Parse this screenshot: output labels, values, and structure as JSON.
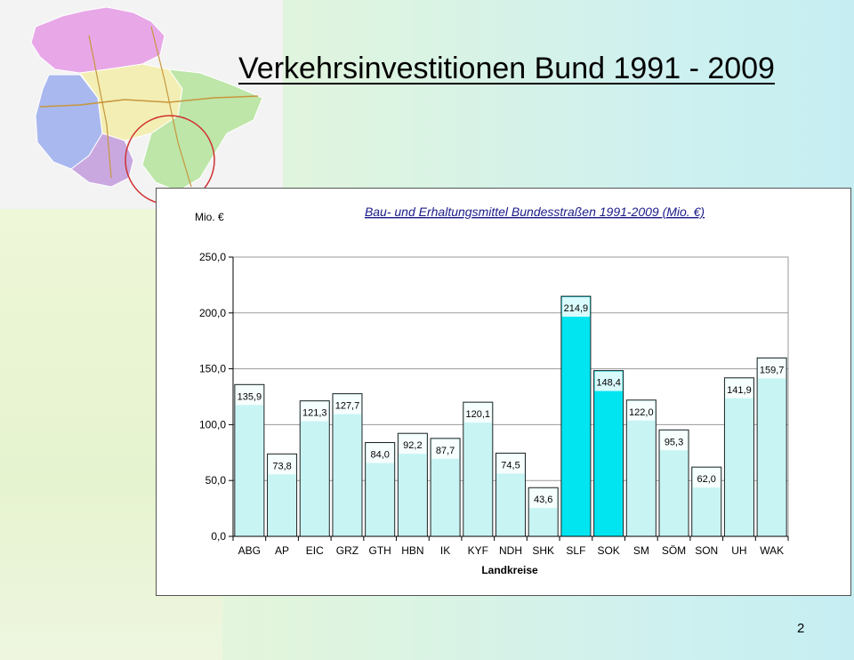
{
  "slide": {
    "title": "Verkehrsinvestitionen Bund 1991 - 2009",
    "page_number": "2"
  },
  "colors": {
    "bar_fill": "#c8f4f4",
    "bar_highlight": "#00e5f0",
    "bar_stroke": "#222222",
    "plot_bg": "#ffffff",
    "grid": "#9a9a9a"
  },
  "chart_data": {
    "type": "bar",
    "title": "Bau- und Erhaltungsmittel Bundesstraßen 1991-2009 (Mio. €)",
    "ylabel": "Mio. €",
    "xlabel": "Landkreise",
    "ylim": [
      0,
      250
    ],
    "yticks": [
      "0,0",
      "50,0",
      "100,0",
      "150,0",
      "200,0",
      "250,0"
    ],
    "grid": true,
    "categories": [
      "ABG",
      "AP",
      "EIC",
      "GRZ",
      "GTH",
      "HBN",
      "IK",
      "KYF",
      "NDH",
      "SHK",
      "SLF",
      "SOK",
      "SM",
      "SÖM",
      "SON",
      "UH",
      "WAK"
    ],
    "values": [
      135.9,
      73.8,
      121.3,
      127.7,
      84.0,
      92.2,
      87.7,
      120.1,
      74.5,
      43.6,
      214.9,
      148.4,
      122.0,
      95.3,
      62.0,
      141.9,
      159.7
    ],
    "labels": [
      "135,9",
      "73,8",
      "121,3",
      "127,7",
      "84,0",
      "92,2",
      "87,7",
      "120,1",
      "74,5",
      "43,6",
      "214,9",
      "148,4",
      "122,0",
      "95,3",
      "62,0",
      "141,9",
      "159,7"
    ],
    "highlighted": [
      "SLF",
      "SOK"
    ]
  }
}
